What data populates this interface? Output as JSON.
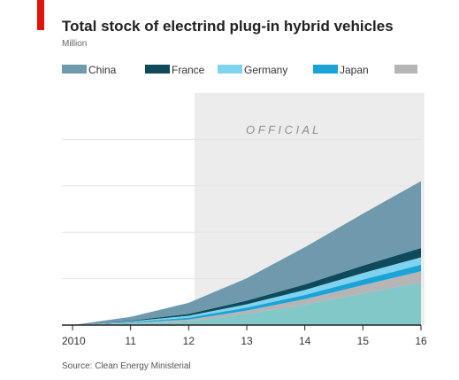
{
  "chart_data": {
    "type": "area",
    "title": "Total stock of electrind plug-in hybrid vehicles",
    "subtitle": "Million",
    "x": [
      "2010",
      "11",
      "12",
      "13",
      "14",
      "15",
      "16"
    ],
    "shaded_region_label": "O F F I C I A L",
    "series": [
      {
        "name": "China",
        "color": "#6f9aad",
        "values": [
          0.0,
          0.02,
          0.06,
          0.12,
          0.2,
          0.28,
          0.36
        ]
      },
      {
        "name": "France",
        "color": "#0f4a5c",
        "values": [
          0.0,
          0.004,
          0.01,
          0.02,
          0.03,
          0.04,
          0.05
        ]
      },
      {
        "name": "Germany",
        "color": "#7fd3ee",
        "values": [
          0.0,
          0.004,
          0.01,
          0.018,
          0.027,
          0.035,
          0.04
        ]
      },
      {
        "name": "Japan",
        "color": "#1aa3d6",
        "values": [
          0.0,
          0.004,
          0.01,
          0.016,
          0.022,
          0.03,
          0.035
        ]
      },
      {
        "name": "",
        "color": "#b5b5b5",
        "values": [
          0.0,
          0.004,
          0.01,
          0.018,
          0.03,
          0.045,
          0.06
        ]
      },
      {
        "name": "",
        "color": "#82c8c8",
        "values": [
          0.0,
          0.008,
          0.02,
          0.06,
          0.11,
          0.17,
          0.23
        ]
      }
    ],
    "ylim": [
      0,
      1.25
    ],
    "grid": true,
    "legend_position": "top"
  },
  "source": "Source: Clean Energy Ministerial"
}
